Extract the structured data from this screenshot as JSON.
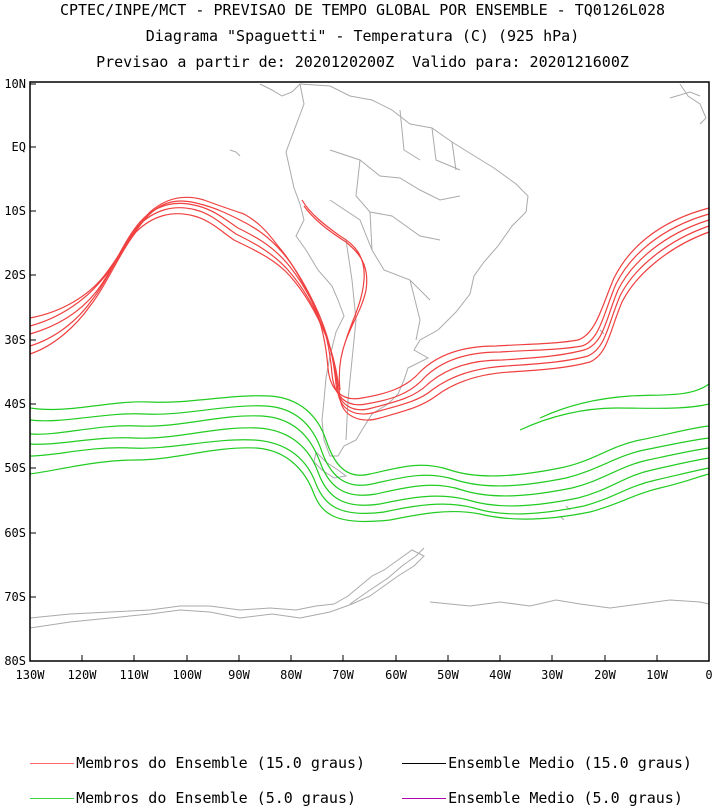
{
  "header": {
    "line1": "CPTEC/INPE/MCT - PREVISAO DE TEMPO GLOBAL POR ENSEMBLE - TQ0126L028",
    "line2": "Diagrama \"Spaguetti\" - Temperatura (C) (925 hPa)",
    "line3": "Previsao a partir de: 2020120200Z  Valido para: 2020121600Z"
  },
  "axes": {
    "lat_labels": [
      "10N",
      "EQ",
      "10S",
      "20S",
      "30S",
      "40S",
      "50S",
      "60S",
      "70S",
      "80S"
    ],
    "lon_labels": [
      "130W",
      "120W",
      "110W",
      "100W",
      "90W",
      "80W",
      "70W",
      "60W",
      "50W",
      "40W",
      "30W",
      "20W",
      "10W",
      "0"
    ]
  },
  "legend": [
    {
      "label": "Membros do Ensemble (15.0 graus)",
      "color": "#ff6b6b"
    },
    {
      "label": "Ensemble Medio (15.0 graus)",
      "color": "#000000"
    },
    {
      "label": "Membros do Ensemble (5.0 graus)",
      "color": "#3ed63e"
    },
    {
      "label": "Ensemble Medio (5.0 graus)",
      "color": "#b000b0"
    }
  ],
  "colors": {
    "isotherm_15": "#f04040",
    "isotherm_5": "#22cc22",
    "coast": "#aaaaaa",
    "frame": "#000000"
  }
}
